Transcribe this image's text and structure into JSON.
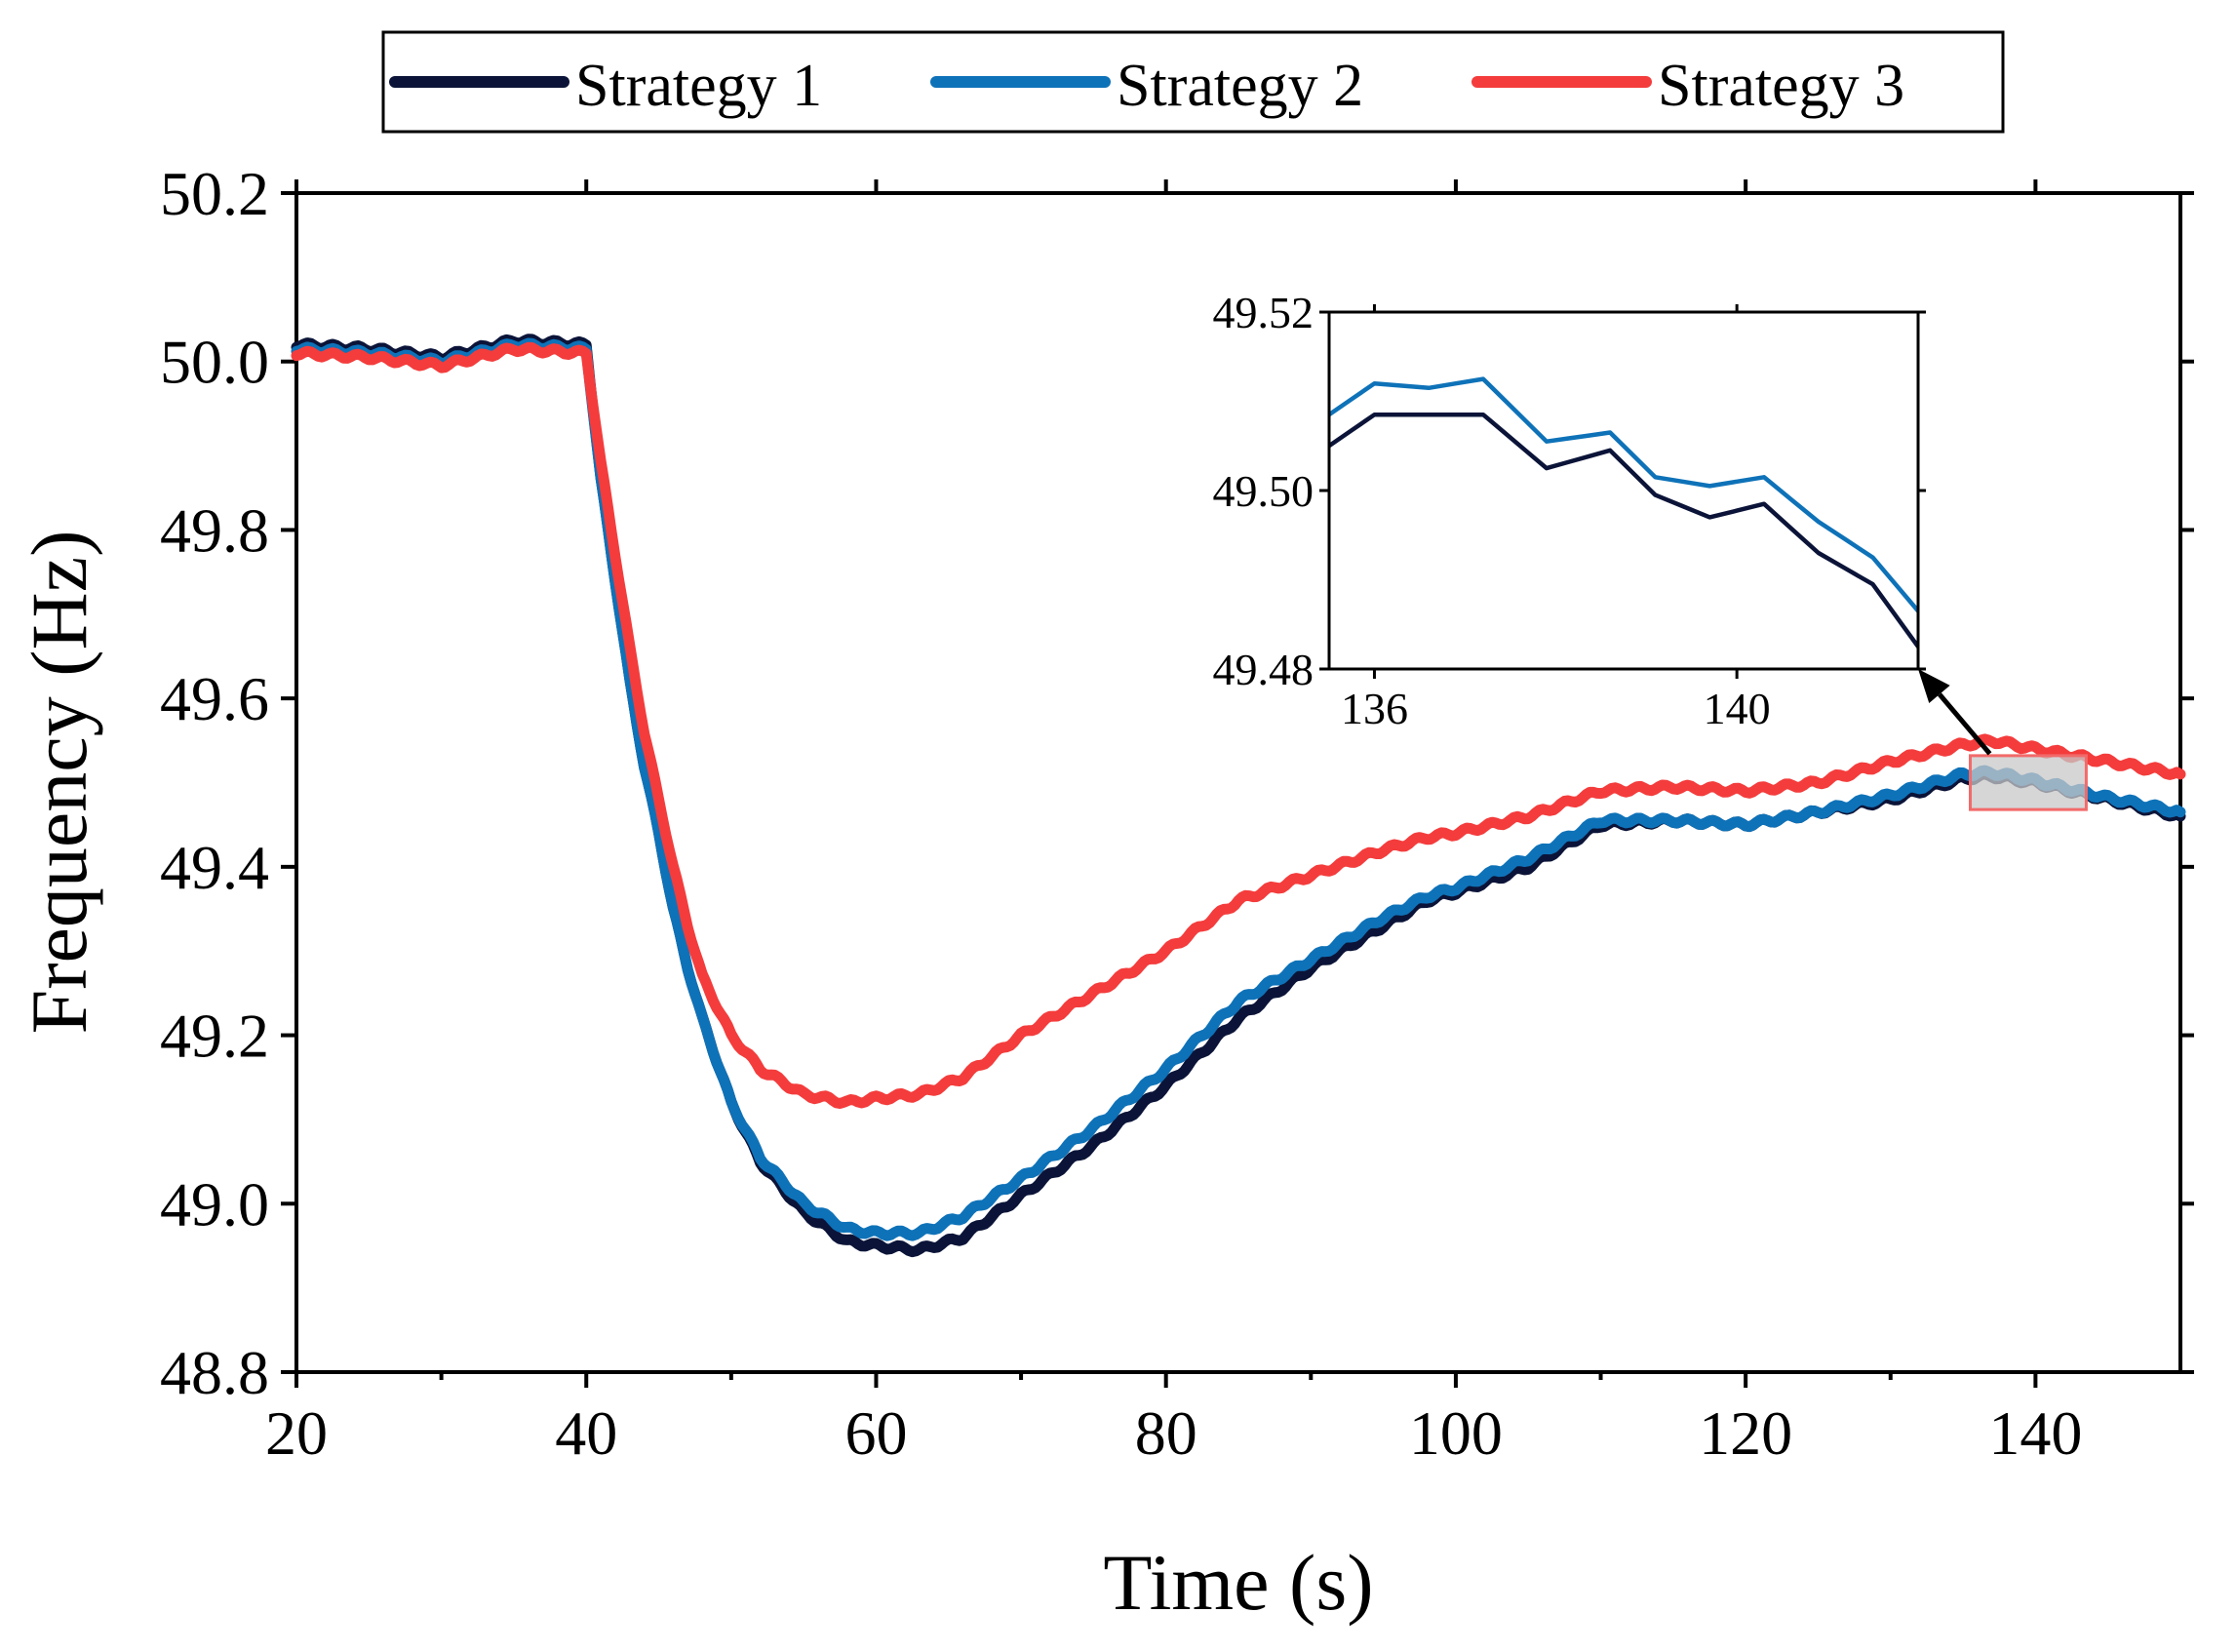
{
  "chart_data": {
    "type": "line",
    "title": "",
    "xlabel": "Time (s)",
    "ylabel": "Frequency (Hz)",
    "xlim": [
      20,
      150
    ],
    "ylim": [
      48.8,
      50.2
    ],
    "xticks": [
      20,
      40,
      60,
      80,
      100,
      120,
      140
    ],
    "xtick_labels": [
      "20",
      "40",
      "60",
      "80",
      "100",
      "120",
      "140"
    ],
    "yticks": [
      48.8,
      49.0,
      49.2,
      49.4,
      49.6,
      49.8,
      50.0,
      50.2
    ],
    "ytick_labels": [
      "48.8",
      "49.0",
      "49.2",
      "49.4",
      "49.6",
      "49.8",
      "50.0",
      "50.2"
    ],
    "grid": false,
    "legend_position": "top-center",
    "series": [
      {
        "name": "Strategy 1",
        "color": "#0b1438",
        "x": [
          20,
          25,
          30,
          35,
          40,
          41,
          42,
          43,
          44,
          45,
          46,
          47,
          48,
          50,
          52,
          55,
          58,
          60,
          63,
          66,
          70,
          75,
          80,
          85,
          90,
          95,
          98,
          100,
          105,
          110,
          115,
          120,
          125,
          130,
          135,
          137,
          140,
          145,
          150
        ],
        "y": [
          50.02,
          50.015,
          50.005,
          50.025,
          50.02,
          49.86,
          49.74,
          49.62,
          49.52,
          49.44,
          49.35,
          49.28,
          49.22,
          49.12,
          49.05,
          48.99,
          48.955,
          48.95,
          48.945,
          48.96,
          49.01,
          49.07,
          49.14,
          49.22,
          49.28,
          49.33,
          49.36,
          49.37,
          49.4,
          49.45,
          49.455,
          49.45,
          49.465,
          49.48,
          49.505,
          49.508,
          49.5,
          49.48,
          49.46
        ]
      },
      {
        "name": "Strategy 2",
        "color": "#0e72b8",
        "x": [
          20,
          25,
          30,
          35,
          40,
          41,
          42,
          43,
          44,
          45,
          46,
          47,
          48,
          50,
          52,
          55,
          58,
          60,
          63,
          66,
          70,
          75,
          80,
          85,
          90,
          95,
          98,
          100,
          105,
          110,
          115,
          120,
          125,
          130,
          135,
          137,
          140,
          145,
          150
        ],
        "y": [
          50.015,
          50.01,
          50.0,
          50.02,
          50.015,
          49.86,
          49.74,
          49.62,
          49.52,
          49.44,
          49.35,
          49.28,
          49.22,
          49.12,
          49.055,
          49.0,
          48.97,
          48.965,
          48.965,
          48.985,
          49.03,
          49.09,
          49.16,
          49.24,
          49.29,
          49.34,
          49.365,
          49.375,
          49.41,
          49.455,
          49.455,
          49.45,
          49.465,
          49.485,
          49.51,
          49.512,
          49.502,
          49.482,
          49.465
        ]
      },
      {
        "name": "Strategy 3",
        "color": "#f43c3c",
        "x": [
          20,
          25,
          30,
          35,
          40,
          41,
          42,
          43,
          44,
          45,
          46,
          47,
          48,
          50,
          52,
          55,
          58,
          60,
          63,
          66,
          70,
          75,
          80,
          85,
          90,
          95,
          98,
          100,
          105,
          110,
          115,
          120,
          125,
          130,
          135,
          137,
          140,
          145,
          150
        ],
        "y": [
          50.01,
          50.005,
          49.995,
          50.015,
          50.01,
          49.88,
          49.77,
          49.66,
          49.56,
          49.48,
          49.4,
          49.33,
          49.27,
          49.2,
          49.16,
          49.13,
          49.12,
          49.125,
          49.13,
          49.15,
          49.2,
          49.25,
          49.3,
          49.36,
          49.39,
          49.42,
          49.435,
          49.44,
          49.46,
          49.49,
          49.495,
          49.49,
          49.5,
          49.525,
          49.545,
          49.55,
          49.54,
          49.525,
          49.51
        ]
      }
    ],
    "inset": {
      "xlim": [
        135.5,
        142
      ],
      "ylim": [
        49.48,
        49.52
      ],
      "xticks": [
        136,
        140
      ],
      "xtick_labels": [
        "136",
        "140"
      ],
      "yticks": [
        49.48,
        49.5,
        49.52
      ],
      "ytick_labels": [
        "49.48",
        "49.50",
        "49.52"
      ],
      "series": [
        {
          "name": "Strategy 1",
          "color": "#0b1438",
          "x": [
            135.5,
            136,
            136.6,
            137.2,
            137.9,
            138.6,
            139.1,
            139.7,
            140.3,
            140.9,
            141.5,
            142
          ],
          "y": [
            49.505,
            49.5085,
            49.5085,
            49.5085,
            49.5025,
            49.5045,
            49.4995,
            49.497,
            49.4985,
            49.493,
            49.4895,
            49.4825
          ]
        },
        {
          "name": "Strategy 2",
          "color": "#0e72b8",
          "x": [
            135.5,
            136,
            136.6,
            137.2,
            137.9,
            138.6,
            139.1,
            139.7,
            140.3,
            140.9,
            141.5,
            142
          ],
          "y": [
            49.5085,
            49.512,
            49.5115,
            49.5125,
            49.5055,
            49.5065,
            49.5015,
            49.5005,
            49.5015,
            49.4965,
            49.4925,
            49.4865
          ]
        }
      ]
    }
  }
}
